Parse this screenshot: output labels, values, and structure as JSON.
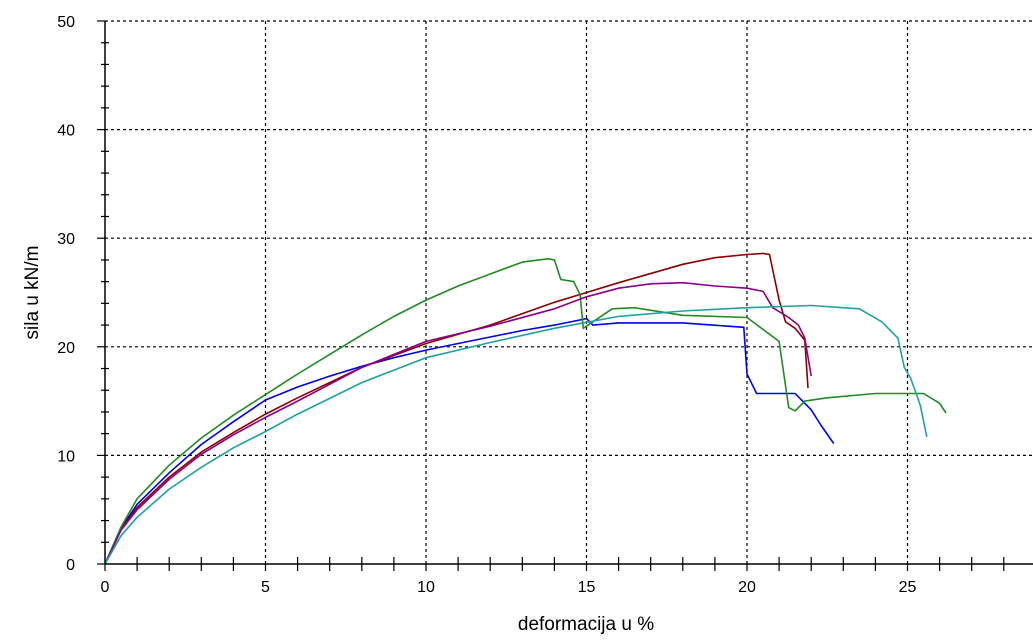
{
  "chart_data": {
    "type": "line",
    "title": "",
    "xlabel": "deformacija u %",
    "ylabel": "sila u kN/m",
    "xlim": [
      0,
      28.5
    ],
    "ylim": [
      0,
      50
    ],
    "x_ticks": [
      0,
      5,
      10,
      15,
      20,
      25
    ],
    "y_ticks": [
      0,
      10,
      20,
      30,
      40,
      50
    ],
    "x_tick_labels": [
      "0",
      "5",
      "10",
      "15",
      "20",
      "25"
    ],
    "y_tick_labels": [
      "0",
      "10",
      "20",
      "30",
      "40",
      "50"
    ],
    "x_minor_step": 1,
    "y_minor_step": 2,
    "grid": true,
    "legend": "none",
    "series": [
      {
        "color": "#0000ee",
        "x": [
          0,
          0.5,
          1,
          2,
          3,
          4,
          5,
          6,
          7,
          8,
          9,
          10,
          11,
          12,
          13,
          14,
          15,
          15.2,
          16,
          18,
          19.9,
          20.0,
          20.3,
          21.5,
          22.0,
          22.3,
          22.7
        ],
        "y": [
          0,
          3.3,
          5.5,
          8.4,
          11.0,
          13.1,
          15.1,
          16.3,
          17.3,
          18.2,
          19.0,
          19.7,
          20.3,
          20.9,
          21.5,
          22.0,
          22.6,
          22.0,
          22.2,
          22.2,
          21.8,
          17.5,
          15.7,
          15.7,
          14.2,
          12.8,
          11.1
        ]
      },
      {
        "color": "#8b0000",
        "x": [
          0,
          0.5,
          1,
          2,
          3,
          4,
          5,
          6,
          8,
          10,
          12,
          14,
          15,
          16,
          18,
          19,
          20,
          20.5,
          20.7,
          21.0,
          21.2,
          21.5,
          21.8,
          21.9
        ],
        "y": [
          0,
          3.2,
          5.2,
          8.0,
          10.3,
          12.1,
          13.8,
          15.3,
          18.1,
          20.3,
          22.0,
          24.1,
          25.0,
          25.9,
          27.6,
          28.2,
          28.5,
          28.6,
          28.5,
          24.3,
          22.3,
          21.7,
          20.6,
          16.2
        ]
      },
      {
        "color": "#228b22",
        "x": [
          0,
          0.5,
          1,
          2,
          3,
          4,
          5,
          6,
          7,
          8,
          9,
          10,
          11,
          12,
          13,
          13.8,
          14.0,
          14.2,
          14.6,
          14.8,
          14.9,
          15.2,
          15.8,
          16.5,
          18,
          20,
          21,
          21.3,
          21.5,
          21.8,
          22.5,
          24,
          25.5,
          26.0,
          26.2
        ],
        "y": [
          0,
          3.4,
          6.0,
          9.1,
          11.6,
          13.7,
          15.6,
          17.5,
          19.3,
          21.1,
          22.8,
          24.3,
          25.6,
          26.7,
          27.8,
          28.1,
          28.0,
          26.2,
          26.0,
          24.8,
          21.7,
          22.3,
          23.5,
          23.6,
          22.9,
          22.7,
          20.5,
          14.4,
          14.1,
          15.0,
          15.3,
          15.7,
          15.7,
          14.8,
          13.9
        ]
      },
      {
        "color": "#8b008b",
        "x": [
          0,
          0.5,
          1,
          2,
          3,
          4,
          5,
          6,
          8,
          10,
          12,
          14,
          15,
          16,
          17,
          18,
          19,
          20,
          20.5,
          20.8,
          21.3,
          21.6,
          21.8,
          22.0
        ],
        "y": [
          0,
          3.1,
          5.0,
          7.8,
          10.1,
          11.9,
          13.5,
          15.0,
          18.1,
          20.5,
          21.9,
          23.5,
          24.6,
          25.4,
          25.8,
          25.9,
          25.6,
          25.4,
          25.1,
          23.6,
          22.7,
          22.0,
          20.8,
          17.3
        ]
      },
      {
        "color": "#20a0a0",
        "x": [
          0,
          0.5,
          1,
          2,
          3,
          4,
          5,
          6,
          8,
          10,
          12,
          14,
          16,
          18,
          20,
          22,
          23.5,
          24.2,
          24.7,
          24.9,
          25.1,
          25.4,
          25.6
        ],
        "y": [
          0,
          2.6,
          4.3,
          6.9,
          8.9,
          10.7,
          12.2,
          13.8,
          16.7,
          19.0,
          20.4,
          21.7,
          22.8,
          23.3,
          23.6,
          23.8,
          23.5,
          22.3,
          20.8,
          18.1,
          17.1,
          14.6,
          11.7
        ]
      }
    ]
  }
}
